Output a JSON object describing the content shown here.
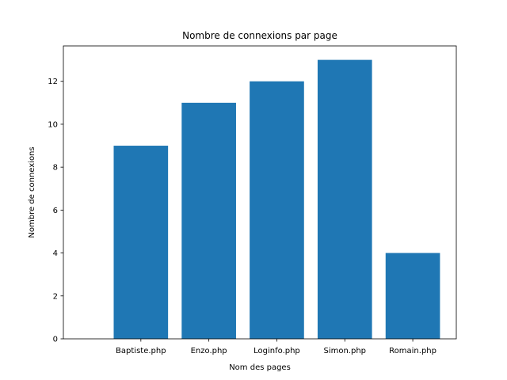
{
  "chart_data": {
    "type": "bar",
    "title": "Nombre de connexions par page",
    "xlabel": "Nom des pages",
    "ylabel": "Nombre de connexions",
    "categories": [
      "Baptiste.php",
      "Enzo.php",
      "Loginfo.php",
      "Simon.php",
      "Romain.php"
    ],
    "values": [
      9,
      11,
      12,
      13,
      4
    ],
    "ylim": [
      0,
      13.65
    ],
    "yticks": [
      0,
      2,
      4,
      6,
      8,
      10,
      12
    ],
    "grid": false,
    "bar_color": "#1f77b4"
  }
}
